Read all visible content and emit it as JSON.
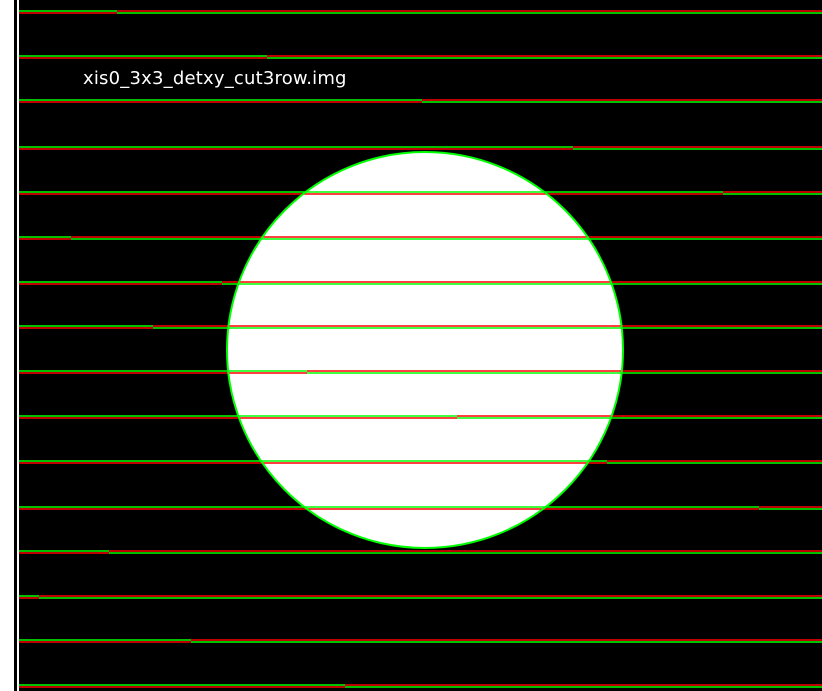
{
  "image": {
    "filename": "xis0_3x3_detxy_cut3row.img",
    "background_color": "#000000",
    "mask_color": "#ffffff",
    "region_outline_color": "#00ff00",
    "row_boundary_colors": [
      "#ff0000",
      "#00ff00"
    ]
  }
}
